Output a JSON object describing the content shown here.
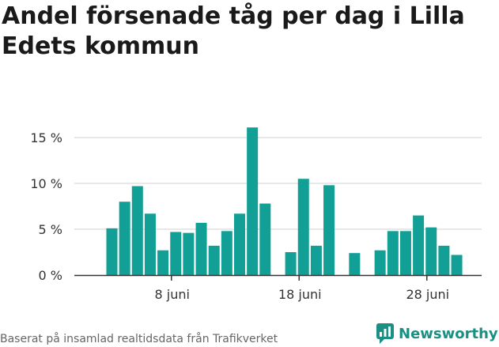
{
  "title": "Andel försenade tåg per dag i Lilla Edets kommun",
  "footer": "Baserat på insamlad realtidsdata från Trafikverket",
  "logo_text": "Newsworthy",
  "colors": {
    "bar": "#12a096",
    "grid": "#d9d9d9",
    "axis": "#333333",
    "logo": "#1a8f84"
  },
  "chart_data": {
    "type": "bar",
    "title": "Andel försenade tåg per dag i Lilla Edets kommun",
    "xlabel": "",
    "ylabel": "",
    "unit": "%",
    "ylim": [
      0,
      16
    ],
    "yticks": [
      0,
      5,
      10,
      15
    ],
    "ytick_labels": [
      "0 %",
      "5 %",
      "10 %",
      "15 %"
    ],
    "x_day_range": [
      1,
      30
    ],
    "xticks": [
      {
        "day": 8,
        "label": "8 juni"
      },
      {
        "day": 18,
        "label": "18 juni"
      },
      {
        "day": 28,
        "label": "28 juni"
      }
    ],
    "grid": true,
    "days": [
      3,
      4,
      5,
      6,
      7,
      8,
      9,
      10,
      11,
      12,
      13,
      14,
      15,
      17,
      18,
      19,
      20,
      22,
      24,
      25,
      26,
      27,
      28,
      29,
      30
    ],
    "values": [
      5.1,
      8.0,
      9.7,
      6.7,
      2.7,
      4.7,
      4.6,
      5.7,
      3.2,
      4.8,
      6.7,
      16.1,
      7.8,
      2.5,
      10.5,
      3.2,
      9.8,
      2.4,
      2.7,
      4.8,
      4.8,
      6.5,
      5.2,
      3.2,
      2.2
    ]
  }
}
